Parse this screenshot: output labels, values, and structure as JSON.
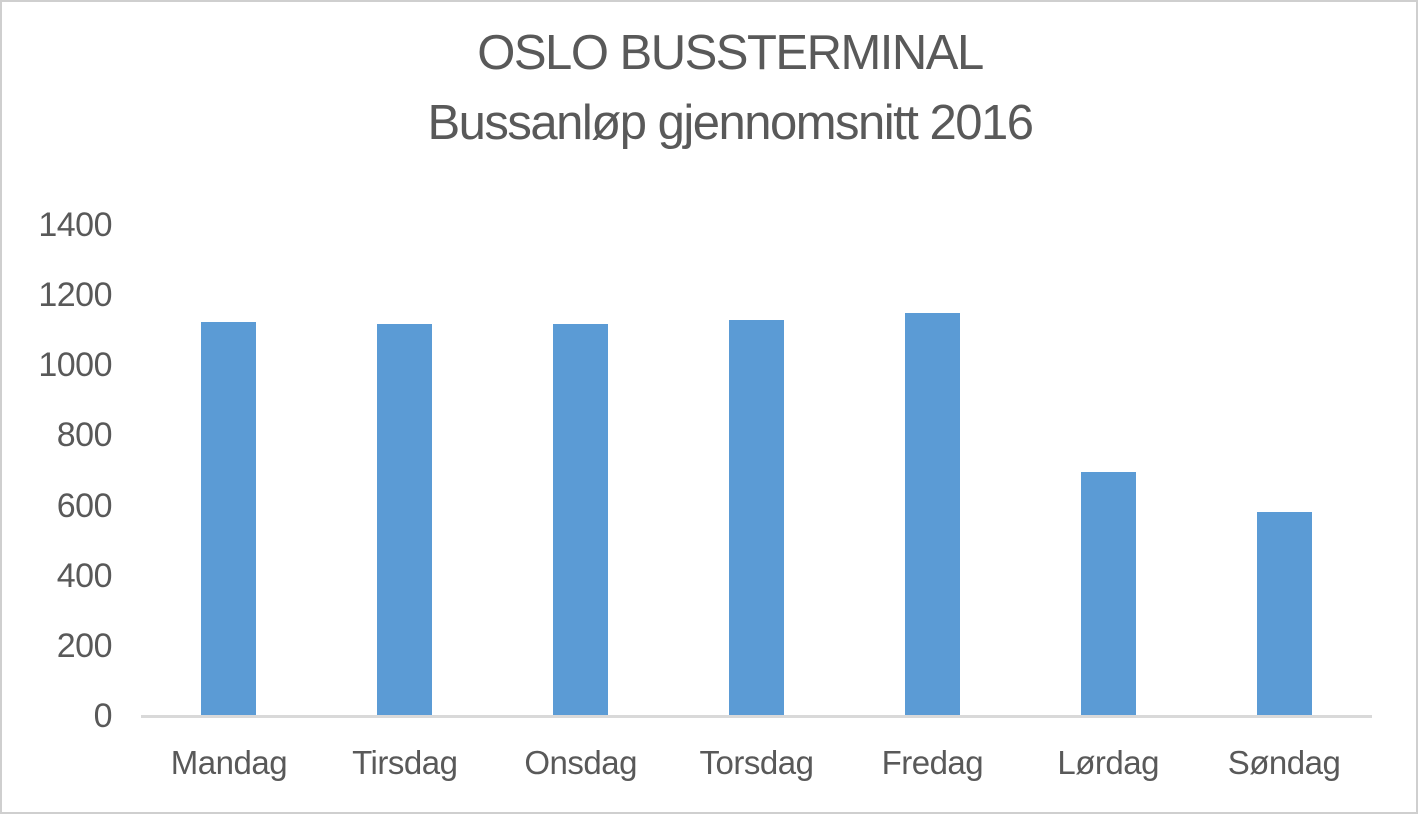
{
  "page": {
    "background": "#FFFFFF",
    "border_color": "#CFCFCF"
  },
  "chart_data": {
    "type": "bar",
    "title": "OSLO BUSSTERMINAL Bussanløp gjennomsnitt 2016",
    "title_lines": [
      "OSLO BUSSTERMINAL",
      "Bussanløp gjennomsnitt 2016"
    ],
    "categories": [
      "Mandag",
      "Tirsdag",
      "Onsdag",
      "Torsdag",
      "Fredag",
      "Lørdag",
      "Søndag"
    ],
    "values": [
      1124,
      1117,
      1117,
      1129,
      1150,
      697,
      583
    ],
    "xlabel": "",
    "ylabel": "",
    "ylim": [
      0,
      1400
    ],
    "y_ticks": [
      0,
      200,
      400,
      600,
      800,
      1000,
      1200,
      1400
    ],
    "grid": false,
    "legend": "none",
    "colors": {
      "bar": "#5B9BD5",
      "axis_line": "#D9D9D9",
      "label_text": "#595959",
      "title_text": "#595959"
    }
  }
}
